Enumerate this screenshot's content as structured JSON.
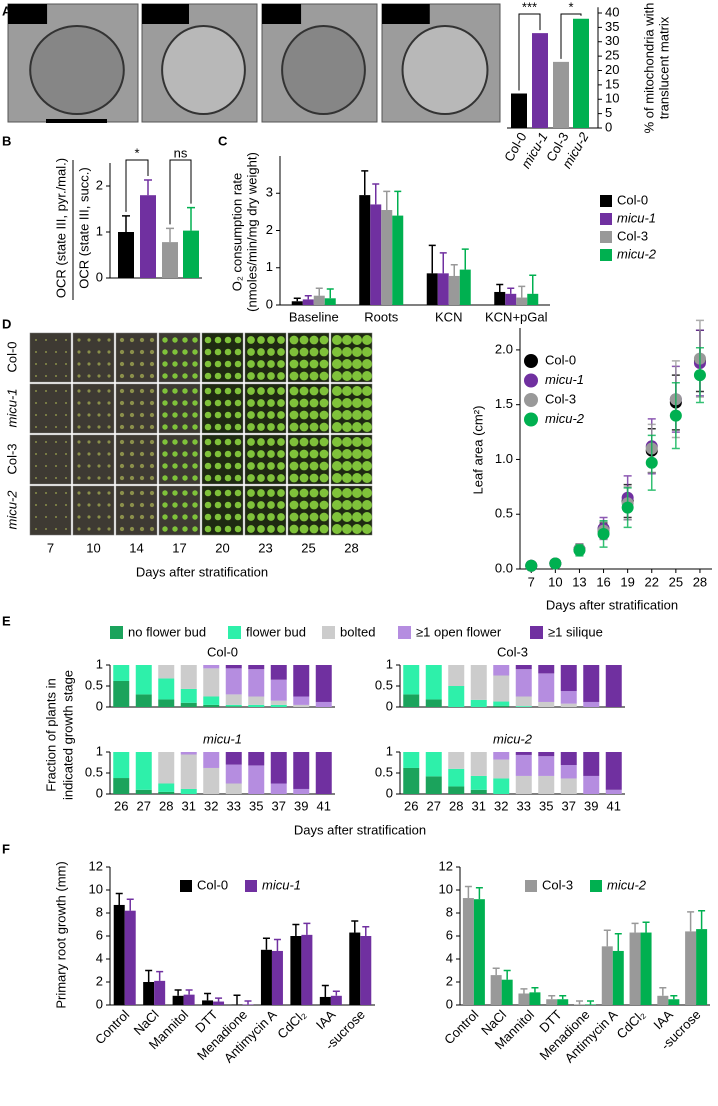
{
  "chart_data": [
    {
      "panel": "A",
      "type": "bar",
      "image_labels": [
        "Col-0",
        "micu-1",
        "Col-3",
        "micu-2"
      ],
      "image_italic": [
        false,
        true,
        false,
        true
      ],
      "categories": [
        "Col-0",
        "micu-1",
        "Col-3",
        "micu-2"
      ],
      "category_italic": [
        false,
        true,
        false,
        true
      ],
      "values": [
        12,
        33,
        23,
        38
      ],
      "colors": [
        "#000000",
        "#7030a0",
        "#999999",
        "#00b050"
      ],
      "ylim": [
        0,
        42
      ],
      "yticks": [
        0,
        5,
        10,
        15,
        20,
        25,
        30,
        35,
        40
      ],
      "ylabel": [
        "% of mitochondria with",
        "translucent matrix"
      ],
      "annotations": [
        "***",
        "*"
      ]
    },
    {
      "panel": "B",
      "type": "bar",
      "values": [
        1.0,
        1.8,
        0.78,
        1.03
      ],
      "errors": [
        0.35,
        0.33,
        0.3,
        0.5
      ],
      "colors": [
        "#000000",
        "#7030a0",
        "#999999",
        "#00b050"
      ],
      "ylim": [
        0,
        2.5
      ],
      "yticks": [
        0,
        1,
        2
      ],
      "ylabel": [
        "OCR (state III, pyr./mal.)",
        "OCR (state III, succ.)"
      ],
      "annotations": [
        "*",
        "ns"
      ]
    },
    {
      "panel": "C",
      "type": "grouped_bar",
      "categories": [
        "Baseline",
        "Roots",
        "KCN",
        "KCN+pGal"
      ],
      "series": [
        {
          "name": "Col-0",
          "color": "#000000",
          "italic": false,
          "values": [
            0.1,
            2.95,
            0.85,
            0.35
          ],
          "errors": [
            0.08,
            0.65,
            0.75,
            0.2
          ]
        },
        {
          "name": "micu-1",
          "color": "#7030a0",
          "italic": true,
          "values": [
            0.15,
            2.7,
            0.85,
            0.3
          ],
          "errors": [
            0.1,
            0.55,
            0.55,
            0.15
          ]
        },
        {
          "name": "Col-3",
          "color": "#999999",
          "italic": false,
          "values": [
            0.25,
            2.55,
            0.78,
            0.2
          ],
          "errors": [
            0.2,
            0.5,
            0.3,
            0.3
          ]
        },
        {
          "name": "micu-2",
          "color": "#00b050",
          "italic": true,
          "values": [
            0.18,
            2.4,
            0.95,
            0.3
          ],
          "errors": [
            0.25,
            0.65,
            0.55,
            0.5
          ]
        }
      ],
      "ylim": [
        0,
        4
      ],
      "yticks": [
        0,
        1,
        2,
        3
      ],
      "ylabel": [
        "O₂ consumption rate",
        "(nmoles/min/mg dry weight)"
      ]
    },
    {
      "panel": "D",
      "type": "scatter",
      "image_grid": {
        "row_labels": [
          "Col-0",
          "micu-1",
          "Col-3",
          "micu-2"
        ],
        "row_italic": [
          false,
          true,
          false,
          true
        ],
        "columns": [
          7,
          10,
          14,
          17,
          20,
          23,
          25,
          28
        ],
        "xlabel": "Days after stratification"
      },
      "x": [
        7,
        10,
        13,
        16,
        19,
        22,
        25,
        28
      ],
      "series": [
        {
          "name": "Col-0",
          "color": "#000000",
          "italic": false,
          "values": [
            0.03,
            0.05,
            0.18,
            0.35,
            0.62,
            1.08,
            1.52,
            1.9
          ],
          "errors": [
            0.01,
            0.01,
            0.04,
            0.07,
            0.15,
            0.2,
            0.25,
            0.28
          ]
        },
        {
          "name": "micu-1",
          "color": "#7030a0",
          "italic": true,
          "values": [
            0.03,
            0.05,
            0.18,
            0.37,
            0.65,
            1.12,
            1.55,
            1.88
          ],
          "errors": [
            0.01,
            0.01,
            0.05,
            0.1,
            0.2,
            0.25,
            0.3,
            0.3
          ]
        },
        {
          "name": "Col-3",
          "color": "#999999",
          "italic": false,
          "values": [
            0.03,
            0.05,
            0.18,
            0.35,
            0.6,
            1.1,
            1.55,
            1.92
          ],
          "errors": [
            0.01,
            0.01,
            0.05,
            0.08,
            0.15,
            0.22,
            0.35,
            0.35
          ]
        },
        {
          "name": "micu-2",
          "color": "#00b050",
          "italic": true,
          "values": [
            0.03,
            0.05,
            0.17,
            0.32,
            0.56,
            0.97,
            1.4,
            1.77
          ],
          "errors": [
            0.01,
            0.01,
            0.05,
            0.12,
            0.18,
            0.25,
            0.3,
            0.25
          ]
        }
      ],
      "xlim": [
        5.6,
        29.5
      ],
      "xticks": [
        7,
        10,
        13,
        16,
        19,
        22,
        25,
        28
      ],
      "ylim": [
        0,
        2.2
      ],
      "yticks": [
        {
          "value": 0,
          "label": "0.0"
        },
        {
          "value": 0.5,
          "label": "0.5"
        },
        {
          "value": 1,
          "label": "1.0"
        },
        {
          "value": 1.5,
          "label": "1.5"
        },
        {
          "value": 2,
          "label": "2.0"
        }
      ],
      "ylabel": "Leaf area (cm²)",
      "xlabel": "Days after stratification"
    },
    {
      "panel": "E",
      "type": "stacked_bar",
      "stages": [
        {
          "name": "no flower bud",
          "color": "#1ba35c"
        },
        {
          "name": "flower bud",
          "color": "#2ef0aa"
        },
        {
          "name": "bolted",
          "color": "#cccccc"
        },
        {
          "name": "≥1 open flower",
          "color": "#b58de0"
        },
        {
          "name": "≥1 silique",
          "color": "#7030a0"
        }
      ],
      "categories": [
        "26",
        "27",
        "28",
        "31",
        "32",
        "33",
        "35",
        "37",
        "39",
        "41"
      ],
      "ylim": [
        0,
        1
      ],
      "yticks": [
        0,
        0.5,
        1
      ],
      "ylabel": [
        "Fraction of plants in",
        "indicated growth stage"
      ],
      "xlabel": "Days after stratification",
      "subplots": [
        {
          "title": "Col-0",
          "italic": false,
          "series": [
            [
              0.62,
              0.3,
              0.18,
              0.1,
              0.05,
              0.02,
              0,
              0,
              0,
              0
            ],
            [
              0.38,
              0.7,
              0.5,
              0.33,
              0.2,
              0.03,
              0.05,
              0.05,
              0,
              0
            ],
            [
              0,
              0,
              0.32,
              0.57,
              0.67,
              0.25,
              0.2,
              0.1,
              0.05,
              0
            ],
            [
              0,
              0,
              0,
              0,
              0.08,
              0.62,
              0.65,
              0.5,
              0.2,
              0.12
            ],
            [
              0,
              0,
              0,
              0,
              0,
              0.08,
              0.1,
              0.35,
              0.75,
              0.88
            ]
          ]
        },
        {
          "title": "Col-3",
          "italic": false,
          "series": [
            [
              0.3,
              0.18,
              0,
              0,
              0.03,
              0,
              0,
              0,
              0,
              0
            ],
            [
              0.7,
              0.82,
              0.5,
              0.17,
              0.1,
              0.02,
              0,
              0,
              0,
              0
            ],
            [
              0,
              0,
              0.5,
              0.83,
              0.62,
              0.23,
              0.12,
              0.08,
              0,
              0
            ],
            [
              0,
              0,
              0,
              0,
              0.25,
              0.65,
              0.68,
              0.3,
              0.12,
              0
            ],
            [
              0,
              0,
              0,
              0,
              0,
              0.1,
              0.2,
              0.62,
              0.88,
              1
            ]
          ]
        },
        {
          "title": "micu-1",
          "italic": true,
          "series": [
            [
              0.38,
              0.1,
              0.05,
              0,
              0,
              0,
              0,
              0,
              0,
              0
            ],
            [
              0.62,
              0.9,
              0.2,
              0.12,
              0,
              0,
              0,
              0,
              0,
              0
            ],
            [
              0,
              0,
              0.75,
              0.82,
              0.62,
              0.25,
              0,
              0,
              0,
              0
            ],
            [
              0,
              0,
              0,
              0.06,
              0.38,
              0.45,
              0.68,
              0.25,
              0.12,
              0
            ],
            [
              0,
              0,
              0,
              0,
              0,
              0.3,
              0.32,
              0.75,
              0.88,
              1
            ]
          ]
        },
        {
          "title": "micu-2",
          "italic": true,
          "series": [
            [
              0.62,
              0.42,
              0.18,
              0.1,
              0,
              0,
              0,
              0,
              0,
              0
            ],
            [
              0.38,
              0.58,
              0.42,
              0.33,
              0.37,
              0,
              0,
              0,
              0,
              0
            ],
            [
              0,
              0,
              0.4,
              0.57,
              0.45,
              0.43,
              0.43,
              0.37,
              0,
              0
            ],
            [
              0,
              0,
              0,
              0,
              0.18,
              0.5,
              0.47,
              0.32,
              0.43,
              0.1
            ],
            [
              0,
              0,
              0,
              0,
              0,
              0.07,
              0.1,
              0.31,
              0.57,
              0.9
            ]
          ]
        }
      ]
    },
    {
      "panel": "F",
      "type": "grouped_bar",
      "categories": [
        "Control",
        "NaCl",
        "Mannitol",
        "DTT",
        "Menadione",
        "Antimycin A",
        "CdCl₂",
        "IAA",
        "-sucrose"
      ],
      "series": [
        {
          "name": "Col-0",
          "color": "#000000",
          "italic": false,
          "values": [
            8.7,
            2.0,
            0.8,
            0.4,
            0.05,
            4.8,
            6.0,
            0.7,
            6.3
          ],
          "errors": [
            1.0,
            1.0,
            0.5,
            0.6,
            0.8,
            1.0,
            1.0,
            1.0,
            1.0
          ]
        },
        {
          "name": "micu-1",
          "color": "#7030a0",
          "italic": true,
          "values": [
            8.2,
            2.1,
            0.9,
            0.3,
            0.05,
            4.7,
            6.1,
            0.8,
            6.0
          ],
          "errors": [
            1.0,
            0.8,
            0.4,
            0.3,
            0.3,
            1.0,
            1.0,
            0.4,
            0.8
          ]
        }
      ],
      "ylim": [
        0,
        12
      ],
      "yticks": [
        0,
        2,
        4,
        6,
        8,
        10,
        12
      ],
      "ylabel": "Primary root growth (mm)"
    },
    {
      "type": "grouped_bar",
      "categories": [
        "Control",
        "NaCl",
        "Mannitol",
        "DTT",
        "Menadione",
        "Antimycin A",
        "CdCl₂",
        "IAA",
        "-sucrose"
      ],
      "series": [
        {
          "name": "Col-3",
          "color": "#999999",
          "italic": false,
          "values": [
            9.3,
            2.6,
            1.0,
            0.5,
            0.05,
            5.1,
            6.3,
            0.8,
            6.4
          ],
          "errors": [
            1.0,
            0.6,
            0.4,
            0.3,
            0.3,
            1.4,
            0.8,
            0.7,
            1.7
          ]
        },
        {
          "name": "micu-2",
          "color": "#00b050",
          "italic": true,
          "values": [
            9.2,
            2.2,
            1.1,
            0.5,
            0.05,
            4.7,
            6.3,
            0.5,
            6.6
          ],
          "errors": [
            1.0,
            0.8,
            0.4,
            0.3,
            0.3,
            1.5,
            0.9,
            0.3,
            1.6
          ]
        }
      ],
      "ylim": [
        0,
        12
      ],
      "yticks": [
        0,
        2,
        4,
        6,
        8,
        10,
        12
      ]
    }
  ]
}
